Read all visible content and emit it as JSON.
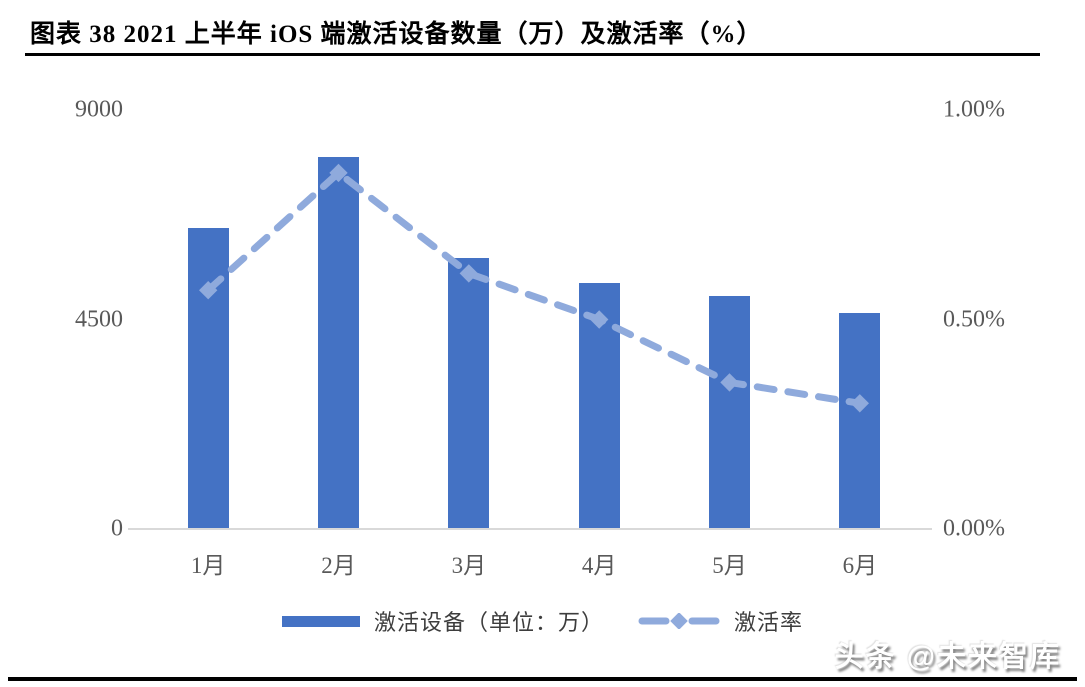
{
  "title": "图表 38 2021 上半年 iOS 端激活设备数量（万）及激活率（%）",
  "watermark": "头条 @未来智库",
  "legend": {
    "bars_label": "激活设备（单位：万）",
    "line_label": "激活率"
  },
  "colors": {
    "bar": "#4472C4",
    "line": "#8FAADC",
    "axis_text": "#595959",
    "baseline": "#D9D9D9",
    "title_text": "#000000"
  },
  "chart_data": {
    "type": "bar",
    "subtype": "bar+line-combo",
    "title": "2021 上半年 iOS 端激活设备数量（万）及激活率（%）",
    "categories": [
      "1月",
      "2月",
      "3月",
      "4月",
      "5月",
      "6月"
    ],
    "series": [
      {
        "name": "激活设备（单位：万）",
        "type": "bar",
        "axis": "left",
        "values": [
          6470,
          8000,
          5820,
          5280,
          5000,
          4640
        ]
      },
      {
        "name": "激活率",
        "type": "line",
        "axis": "right",
        "values": [
          0.57,
          0.85,
          0.61,
          0.5,
          0.35,
          0.3
        ]
      }
    ],
    "left_axis": {
      "ticks": [
        "9000",
        "4500",
        "0"
      ],
      "min": 0,
      "max": 9000
    },
    "right_axis": {
      "ticks": [
        "1.00%",
        "0.50%",
        "0.00%"
      ],
      "min": 0,
      "max": 1.0
    },
    "grid": false,
    "line_style": "dashed-with-diamond-markers",
    "legend_position": "bottom"
  }
}
